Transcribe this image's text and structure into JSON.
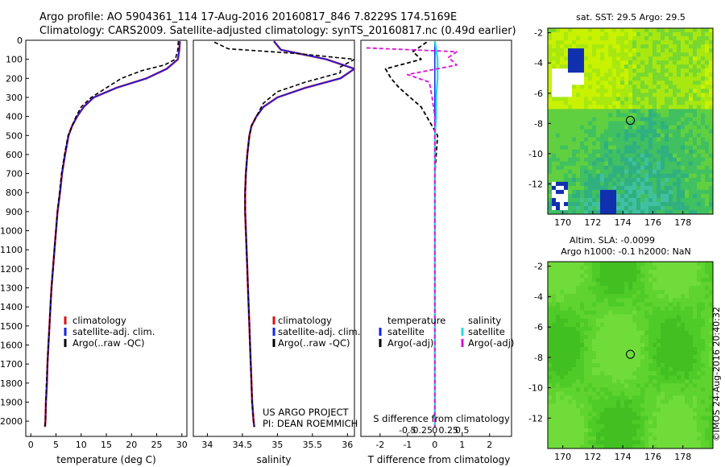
{
  "header": {
    "line1": "Argo profile: AO 5904361_114 17-Aug-2016 20160817_846 7.8229S 174.5169E",
    "line2": "Climatology: CARS2009. Satellite-adjusted climatology: synTS_20160817.nc (0.49d earlier)"
  },
  "footer": {
    "project_line1": "US ARGO PROJECT",
    "project_line2": "PI: DEAN ROEMMICH",
    "stamp": "©IMOS 24-Aug-2016 20:40:32"
  },
  "colors": {
    "climatology": "#dd1111",
    "satellite": "#1122ee",
    "argo": "#000000",
    "sat_salinity": "#22dddd",
    "argo_salinity_adj": "#dd11dd"
  },
  "chart_data": [
    {
      "type": "line",
      "name": "temperature-panel",
      "xlabel": "temperature (deg C)",
      "ylabel": "",
      "xlim": [
        -1,
        31
      ],
      "ylim": [
        2080,
        0
      ],
      "x_ticks": [
        0,
        5,
        10,
        15,
        20,
        25,
        30
      ],
      "y_ticks": [
        0,
        100,
        200,
        300,
        400,
        500,
        600,
        700,
        800,
        900,
        1000,
        1100,
        1200,
        1300,
        1400,
        1500,
        1600,
        1700,
        1800,
        1900,
        2000
      ],
      "legend": [
        "climatology",
        "satellite-adj. clim.",
        "Argo(..raw -QC)"
      ],
      "legend_position": "lower-center",
      "series": [
        {
          "name": "climatology",
          "color_key": "climatology",
          "dash": "none",
          "width": 2.5,
          "points": [
            [
              29.6,
              5
            ],
            [
              29.5,
              50
            ],
            [
              29.2,
              100
            ],
            [
              27,
              150
            ],
            [
              23,
              200
            ],
            [
              17,
              250
            ],
            [
              12.5,
              300
            ],
            [
              10.5,
              350
            ],
            [
              9.2,
              400
            ],
            [
              8.2,
              450
            ],
            [
              7.5,
              500
            ],
            [
              6.8,
              600
            ],
            [
              6.2,
              700
            ],
            [
              5.8,
              800
            ],
            [
              5.3,
              900
            ],
            [
              5,
              1000
            ],
            [
              4.7,
              1100
            ],
            [
              4.4,
              1200
            ],
            [
              4.1,
              1300
            ],
            [
              3.9,
              1400
            ],
            [
              3.7,
              1500
            ],
            [
              3.5,
              1600
            ],
            [
              3.3,
              1700
            ],
            [
              3.2,
              1800
            ],
            [
              3,
              1900
            ],
            [
              2.9,
              2000
            ],
            [
              2.8,
              2030
            ]
          ]
        },
        {
          "name": "satellite-adj. clim.",
          "color_key": "satellite",
          "dash": "none",
          "width": 1.6,
          "points": [
            [
              29.6,
              5
            ],
            [
              29.5,
              50
            ],
            [
              29.2,
              100
            ],
            [
              27,
              150
            ],
            [
              23,
              200
            ],
            [
              17,
              250
            ],
            [
              12.5,
              300
            ],
            [
              10.5,
              350
            ],
            [
              9.2,
              400
            ],
            [
              8.2,
              450
            ],
            [
              7.5,
              500
            ],
            [
              6.8,
              600
            ],
            [
              6.2,
              700
            ],
            [
              5.8,
              800
            ],
            [
              5.3,
              900
            ],
            [
              5,
              1000
            ],
            [
              4.7,
              1100
            ],
            [
              4.4,
              1200
            ],
            [
              4.1,
              1300
            ],
            [
              3.9,
              1400
            ],
            [
              3.7,
              1500
            ],
            [
              3.5,
              1600
            ],
            [
              3.3,
              1700
            ],
            [
              3.2,
              1800
            ],
            [
              3,
              1900
            ],
            [
              2.9,
              2000
            ],
            [
              2.8,
              2030
            ]
          ]
        },
        {
          "name": "Argo(..raw -QC)",
          "color_key": "argo",
          "dash": "5,3",
          "width": 1.6,
          "points": [
            [
              29.3,
              5
            ],
            [
              29.2,
              50
            ],
            [
              28.7,
              100
            ],
            [
              26.5,
              130
            ],
            [
              22,
              160
            ],
            [
              18,
              200
            ],
            [
              15,
              250
            ],
            [
              12,
              300
            ],
            [
              10,
              350
            ],
            [
              9,
              400
            ],
            [
              8.2,
              450
            ],
            [
              7.4,
              500
            ],
            [
              6.7,
              600
            ],
            [
              6.1,
              700
            ],
            [
              5.7,
              800
            ],
            [
              5.3,
              900
            ],
            [
              5,
              1000
            ],
            [
              4.7,
              1100
            ],
            [
              4.4,
              1200
            ],
            [
              4.1,
              1300
            ],
            [
              3.9,
              1400
            ],
            [
              3.7,
              1500
            ],
            [
              3.5,
              1600
            ],
            [
              3.3,
              1700
            ],
            [
              3.1,
              1800
            ],
            [
              3,
              1900
            ],
            [
              2.9,
              2000
            ],
            [
              2.8,
              2030
            ]
          ]
        }
      ]
    },
    {
      "type": "line",
      "name": "salinity-panel",
      "xlabel": "salinity",
      "ylabel": "",
      "xlim": [
        33.8,
        36.1
      ],
      "ylim": [
        2080,
        0
      ],
      "x_ticks": [
        34,
        34.5,
        35,
        35.5,
        36
      ],
      "legend": [
        "climatology",
        "satellite-adj. clim.",
        "Argo(..raw -QC)"
      ],
      "legend_position": "lower-center",
      "series": [
        {
          "name": "climatology",
          "color_key": "climatology",
          "dash": "none",
          "width": 2.5,
          "points": [
            [
              34.95,
              5
            ],
            [
              35.05,
              50
            ],
            [
              35.7,
              100
            ],
            [
              36.1,
              150
            ],
            [
              35.9,
              200
            ],
            [
              35.4,
              250
            ],
            [
              35,
              300
            ],
            [
              34.8,
              350
            ],
            [
              34.7,
              400
            ],
            [
              34.63,
              450
            ],
            [
              34.6,
              500
            ],
            [
              34.57,
              600
            ],
            [
              34.55,
              700
            ],
            [
              34.54,
              800
            ],
            [
              34.54,
              900
            ],
            [
              34.55,
              1000
            ],
            [
              34.56,
              1100
            ],
            [
              34.57,
              1200
            ],
            [
              34.58,
              1300
            ],
            [
              34.59,
              1400
            ],
            [
              34.6,
              1500
            ],
            [
              34.61,
              1600
            ],
            [
              34.62,
              1700
            ],
            [
              34.63,
              1800
            ],
            [
              34.64,
              1900
            ],
            [
              34.66,
              2000
            ],
            [
              34.67,
              2030
            ]
          ]
        },
        {
          "name": "satellite-adj. clim.",
          "color_key": "satellite",
          "dash": "none",
          "width": 1.6,
          "points": [
            [
              34.95,
              5
            ],
            [
              35.05,
              50
            ],
            [
              35.7,
              100
            ],
            [
              36.1,
              150
            ],
            [
              35.9,
              200
            ],
            [
              35.4,
              250
            ],
            [
              35,
              300
            ],
            [
              34.8,
              350
            ],
            [
              34.7,
              400
            ],
            [
              34.63,
              450
            ],
            [
              34.6,
              500
            ],
            [
              34.57,
              600
            ],
            [
              34.55,
              700
            ],
            [
              34.54,
              800
            ],
            [
              34.54,
              900
            ],
            [
              34.55,
              1000
            ],
            [
              34.56,
              1100
            ],
            [
              34.57,
              1200
            ],
            [
              34.58,
              1300
            ],
            [
              34.59,
              1400
            ],
            [
              34.6,
              1500
            ],
            [
              34.61,
              1600
            ],
            [
              34.62,
              1700
            ],
            [
              34.63,
              1800
            ],
            [
              34.64,
              1900
            ],
            [
              34.66,
              2000
            ],
            [
              34.67,
              2030
            ]
          ]
        },
        {
          "name": "Argo(..raw -QC)",
          "color_key": "argo",
          "dash": "5,3",
          "width": 1.6,
          "points": [
            [
              34.1,
              10
            ],
            [
              34.3,
              45
            ],
            [
              35.3,
              70
            ],
            [
              36.1,
              100
            ],
            [
              35.9,
              140
            ],
            [
              35.9,
              170
            ],
            [
              35.4,
              220
            ],
            [
              35,
              270
            ],
            [
              34.8,
              330
            ],
            [
              34.7,
              400
            ],
            [
              34.63,
              450
            ],
            [
              34.6,
              500
            ],
            [
              34.57,
              600
            ],
            [
              34.55,
              700
            ],
            [
              34.54,
              800
            ],
            [
              34.54,
              900
            ],
            [
              34.55,
              1000
            ],
            [
              34.56,
              1100
            ],
            [
              34.57,
              1200
            ],
            [
              34.58,
              1300
            ],
            [
              34.59,
              1400
            ],
            [
              34.6,
              1500
            ],
            [
              34.61,
              1600
            ],
            [
              34.62,
              1700
            ],
            [
              34.63,
              1800
            ],
            [
              34.64,
              1900
            ],
            [
              34.66,
              2000
            ],
            [
              34.67,
              2030
            ]
          ]
        }
      ]
    },
    {
      "type": "line",
      "name": "difference-panel",
      "xlabel": "T difference from climatology",
      "xlabel_top": "S difference from climatology",
      "ylabel": "",
      "xlim": [
        -2.7,
        2.8
      ],
      "ylim": [
        2080,
        0
      ],
      "x_ticks": [
        -2,
        -1,
        0,
        1,
        2
      ],
      "s_ticks": [
        -0.5,
        -0.25,
        0,
        0.25,
        0.5
      ],
      "legend_headers": [
        "temperature",
        "salinity"
      ],
      "legend": [
        "satellite",
        "Argo(-adj)",
        "satellite",
        "Argo(-adj)"
      ],
      "legend_position": "lower-center",
      "series": [
        {
          "name": "satellite",
          "group": "temperature",
          "color_key": "satellite",
          "dash": "none",
          "width": 1.5,
          "points": [
            [
              0,
              5
            ],
            [
              0,
              2030
            ]
          ]
        },
        {
          "name": "Argo(-adj)",
          "group": "temperature",
          "color_key": "argo",
          "dash": "5,3",
          "width": 1.8,
          "points": [
            [
              -0.3,
              10
            ],
            [
              -0.8,
              60
            ],
            [
              -0.5,
              100
            ],
            [
              -1.8,
              150
            ],
            [
              -1.6,
              200
            ],
            [
              -1.3,
              250
            ],
            [
              -0.9,
              300
            ],
            [
              -0.5,
              350
            ],
            [
              -0.3,
              400
            ],
            [
              -0.1,
              450
            ],
            [
              0.1,
              500
            ],
            [
              0.05,
              600
            ],
            [
              0,
              700
            ],
            [
              0,
              2030
            ]
          ]
        },
        {
          "name": "satellite",
          "group": "salinity",
          "color_key": "sat_salinity",
          "dash": "none",
          "width": 2.2,
          "points": [
            [
              0,
              5
            ],
            [
              0.05,
              50
            ],
            [
              0.1,
              100
            ],
            [
              0.1,
              200
            ],
            [
              0.05,
              300
            ],
            [
              0.05,
              400
            ],
            [
              0,
              500
            ],
            [
              0,
              2030
            ]
          ]
        },
        {
          "name": "Argo(-adj)",
          "group": "salinity",
          "color_key": "argo_salinity_adj",
          "dash": "5,3",
          "width": 1.8,
          "points": [
            [
              -2.5,
              40
            ],
            [
              0.8,
              60
            ],
            [
              0.5,
              90
            ],
            [
              0.8,
              130
            ],
            [
              -1,
              180
            ],
            [
              -0.2,
              220
            ],
            [
              -0.1,
              300
            ],
            [
              0,
              400
            ],
            [
              0,
              2030
            ]
          ]
        }
      ]
    },
    {
      "type": "heatmap",
      "name": "sst-map",
      "title": "sat. SST: 29.5 Argo: 29.5",
      "xlim": [
        169,
        180
      ],
      "ylim": [
        -14,
        -1.7
      ],
      "x_ticks": [
        170,
        172,
        174,
        176,
        178
      ],
      "y_ticks": [
        -2,
        -4,
        -6,
        -8,
        -10,
        -12
      ],
      "marker": [
        174.5,
        -7.8
      ]
    },
    {
      "type": "heatmap",
      "name": "sla-map",
      "title_line1": "Altim. SLA: -0.0099",
      "title_line2": "Argo h1000: -0.1 h2000: NaN",
      "xlim": [
        169,
        180
      ],
      "ylim": [
        -14,
        -1.7
      ],
      "x_ticks": [
        170,
        172,
        174,
        176,
        178
      ],
      "y_ticks": [
        -2,
        -4,
        -6,
        -8,
        -10,
        -12
      ],
      "marker": [
        174.5,
        -7.8
      ]
    }
  ]
}
